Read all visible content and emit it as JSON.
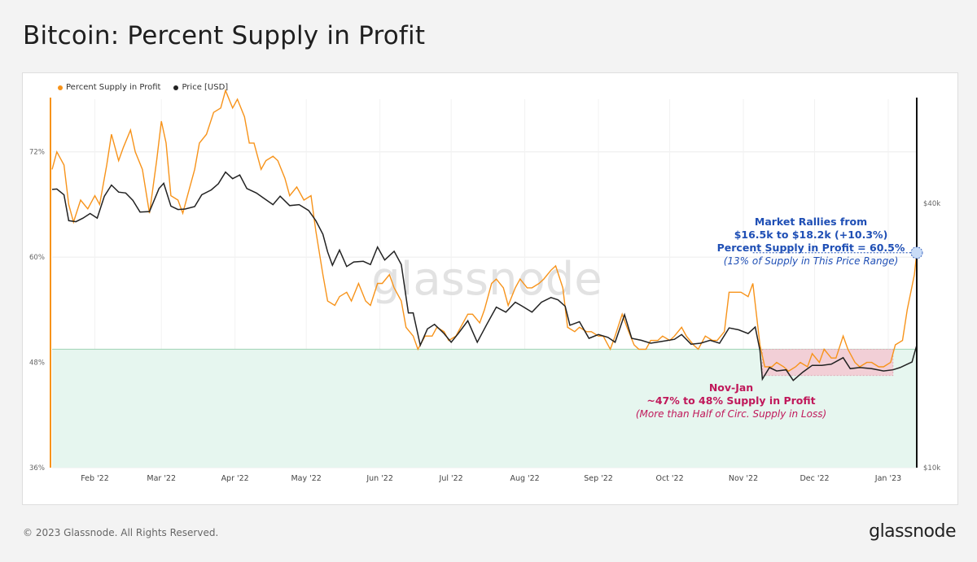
{
  "page": {
    "title": "Bitcoin: Percent Supply in Profit",
    "copyright": "© 2023 Glassnode. All Rights Reserved.",
    "brand": "glassnode",
    "watermark": "glassnode"
  },
  "colors": {
    "supply": "#f7931a",
    "price": "#222222",
    "zone_fill": "#e6f6ef",
    "zone_line": "#9fd3b5",
    "loss_box": "#f2cfd6",
    "annotation_blue": "#1f4fb5",
    "annotation_red": "#c0185a"
  },
  "chart_data": {
    "type": "line",
    "title": "Bitcoin: Percent Supply in Profit",
    "legend": [
      {
        "name": "Percent Supply in Profit",
        "color": "#f7931a"
      },
      {
        "name": "Price [USD]",
        "color": "#222222"
      }
    ],
    "legend_position": "top-left",
    "grid": true,
    "x_ticks": [
      "Feb '22",
      "Mar '22",
      "Apr '22",
      "May '22",
      "Jun '22",
      "Jul '22",
      "Aug '22",
      "Sep '22",
      "Oct '22",
      "Nov '22",
      "Dec '22",
      "Jan '23"
    ],
    "y_left": {
      "ticks": [
        "72%",
        "60%",
        "48%",
        "36%"
      ],
      "range": [
        36,
        78
      ]
    },
    "y_right": {
      "ticks": [
        "$40k",
        "$10k"
      ],
      "scale": "log",
      "range": [
        10000,
        69000
      ]
    },
    "x_range": [
      "2022-01-14",
      "2023-01-13"
    ],
    "series": [
      {
        "name": "Percent Supply in Profit",
        "axis": "left",
        "points": [
          [
            "2022-01-14",
            70.0
          ],
          [
            "2022-01-16",
            72.0
          ],
          [
            "2022-01-19",
            70.5
          ],
          [
            "2022-01-21",
            66.0
          ],
          [
            "2022-01-23",
            64.0
          ],
          [
            "2022-01-26",
            66.5
          ],
          [
            "2022-01-29",
            65.5
          ],
          [
            "2022-02-01",
            67.0
          ],
          [
            "2022-02-03",
            66.0
          ],
          [
            "2022-02-06",
            70.5
          ],
          [
            "2022-02-08",
            74.0
          ],
          [
            "2022-02-11",
            71.0
          ],
          [
            "2022-02-13",
            72.5
          ],
          [
            "2022-02-16",
            74.5
          ],
          [
            "2022-02-18",
            72.0
          ],
          [
            "2022-02-21",
            70.0
          ],
          [
            "2022-02-24",
            65.0
          ],
          [
            "2022-02-27",
            71.0
          ],
          [
            "2022-03-01",
            75.5
          ],
          [
            "2022-03-03",
            73.0
          ],
          [
            "2022-03-05",
            67.0
          ],
          [
            "2022-03-08",
            66.5
          ],
          [
            "2022-03-10",
            65.0
          ],
          [
            "2022-03-12",
            67.0
          ],
          [
            "2022-03-15",
            70.0
          ],
          [
            "2022-03-17",
            73.0
          ],
          [
            "2022-03-20",
            74.0
          ],
          [
            "2022-03-23",
            76.5
          ],
          [
            "2022-03-26",
            77.0
          ],
          [
            "2022-03-28",
            79.0
          ],
          [
            "2022-03-31",
            77.0
          ],
          [
            "2022-04-02",
            78.0
          ],
          [
            "2022-04-05",
            76.0
          ],
          [
            "2022-04-07",
            73.0
          ],
          [
            "2022-04-09",
            73.0
          ],
          [
            "2022-04-12",
            70.0
          ],
          [
            "2022-04-14",
            71.0
          ],
          [
            "2022-04-17",
            71.5
          ],
          [
            "2022-04-19",
            71.0
          ],
          [
            "2022-04-22",
            69.0
          ],
          [
            "2022-04-24",
            67.0
          ],
          [
            "2022-04-27",
            68.0
          ],
          [
            "2022-04-30",
            66.5
          ],
          [
            "2022-05-03",
            67.0
          ],
          [
            "2022-05-05",
            63.0
          ],
          [
            "2022-05-08",
            58.0
          ],
          [
            "2022-05-10",
            55.0
          ],
          [
            "2022-05-13",
            54.5
          ],
          [
            "2022-05-15",
            55.5
          ],
          [
            "2022-05-18",
            56.0
          ],
          [
            "2022-05-20",
            55.0
          ],
          [
            "2022-05-23",
            57.0
          ],
          [
            "2022-05-26",
            55.0
          ],
          [
            "2022-05-28",
            54.5
          ],
          [
            "2022-05-31",
            57.0
          ],
          [
            "2022-06-02",
            57.0
          ],
          [
            "2022-06-05",
            58.0
          ],
          [
            "2022-06-07",
            56.5
          ],
          [
            "2022-06-10",
            55.0
          ],
          [
            "2022-06-12",
            52.0
          ],
          [
            "2022-06-15",
            51.0
          ],
          [
            "2022-06-17",
            49.5
          ],
          [
            "2022-06-20",
            51.0
          ],
          [
            "2022-06-23",
            51.0
          ],
          [
            "2022-06-25",
            52.0
          ],
          [
            "2022-06-28",
            51.5
          ],
          [
            "2022-06-30",
            50.5
          ],
          [
            "2022-07-03",
            51.0
          ],
          [
            "2022-07-05",
            52.0
          ],
          [
            "2022-07-08",
            53.5
          ],
          [
            "2022-07-10",
            53.5
          ],
          [
            "2022-07-13",
            52.5
          ],
          [
            "2022-07-15",
            54.0
          ],
          [
            "2022-07-18",
            57.0
          ],
          [
            "2022-07-20",
            57.5
          ],
          [
            "2022-07-23",
            56.5
          ],
          [
            "2022-07-25",
            54.5
          ],
          [
            "2022-07-28",
            56.5
          ],
          [
            "2022-07-30",
            57.5
          ],
          [
            "2022-08-02",
            56.5
          ],
          [
            "2022-08-04",
            56.5
          ],
          [
            "2022-08-07",
            57.0
          ],
          [
            "2022-08-09",
            57.5
          ],
          [
            "2022-08-12",
            58.5
          ],
          [
            "2022-08-14",
            59.0
          ],
          [
            "2022-08-17",
            56.5
          ],
          [
            "2022-08-19",
            52.0
          ],
          [
            "2022-08-22",
            51.5
          ],
          [
            "2022-08-24",
            52.0
          ],
          [
            "2022-08-27",
            51.5
          ],
          [
            "2022-08-29",
            51.5
          ],
          [
            "2022-09-01",
            51.0
          ],
          [
            "2022-09-03",
            51.0
          ],
          [
            "2022-09-06",
            49.5
          ],
          [
            "2022-09-08",
            51.0
          ],
          [
            "2022-09-11",
            53.5
          ],
          [
            "2022-09-13",
            52.0
          ],
          [
            "2022-09-16",
            50.0
          ],
          [
            "2022-09-18",
            49.5
          ],
          [
            "2022-09-21",
            49.5
          ],
          [
            "2022-09-23",
            50.5
          ],
          [
            "2022-09-26",
            50.5
          ],
          [
            "2022-09-28",
            51.0
          ],
          [
            "2022-10-01",
            50.5
          ],
          [
            "2022-10-03",
            51.0
          ],
          [
            "2022-10-06",
            52.0
          ],
          [
            "2022-10-08",
            51.0
          ],
          [
            "2022-10-11",
            50.0
          ],
          [
            "2022-10-13",
            49.5
          ],
          [
            "2022-10-16",
            51.0
          ],
          [
            "2022-10-19",
            50.5
          ],
          [
            "2022-10-21",
            50.5
          ],
          [
            "2022-10-24",
            51.5
          ],
          [
            "2022-10-26",
            56.0
          ],
          [
            "2022-10-29",
            56.0
          ],
          [
            "2022-10-31",
            56.0
          ],
          [
            "2022-11-03",
            55.5
          ],
          [
            "2022-11-05",
            57.0
          ],
          [
            "2022-11-08",
            50.0
          ],
          [
            "2022-11-10",
            47.5
          ],
          [
            "2022-11-13",
            47.5
          ],
          [
            "2022-11-15",
            48.0
          ],
          [
            "2022-11-18",
            47.5
          ],
          [
            "2022-11-20",
            47.0
          ],
          [
            "2022-11-23",
            47.5
          ],
          [
            "2022-11-25",
            48.0
          ],
          [
            "2022-11-28",
            47.5
          ],
          [
            "2022-11-30",
            49.0
          ],
          [
            "2022-12-03",
            48.0
          ],
          [
            "2022-12-05",
            49.5
          ],
          [
            "2022-12-08",
            48.5
          ],
          [
            "2022-12-10",
            48.5
          ],
          [
            "2022-12-13",
            51.0
          ],
          [
            "2022-12-15",
            49.5
          ],
          [
            "2022-12-18",
            48.0
          ],
          [
            "2022-12-20",
            47.5
          ],
          [
            "2022-12-23",
            48.0
          ],
          [
            "2022-12-25",
            48.0
          ],
          [
            "2022-12-28",
            47.5
          ],
          [
            "2022-12-30",
            47.5
          ],
          [
            "2023-01-02",
            48.0
          ],
          [
            "2023-01-04",
            50.0
          ],
          [
            "2023-01-07",
            50.5
          ],
          [
            "2023-01-09",
            54.0
          ],
          [
            "2023-01-12",
            58.0
          ],
          [
            "2023-01-13",
            60.5
          ]
        ]
      },
      {
        "name": "Price [USD]",
        "axis": "right",
        "points": [
          [
            "2022-01-14",
            43000
          ],
          [
            "2022-01-16",
            43100
          ],
          [
            "2022-01-19",
            41800
          ],
          [
            "2022-01-21",
            36500
          ],
          [
            "2022-01-24",
            36300
          ],
          [
            "2022-01-27",
            37000
          ],
          [
            "2022-01-30",
            37900
          ],
          [
            "2022-02-02",
            37000
          ],
          [
            "2022-02-05",
            41500
          ],
          [
            "2022-02-08",
            44000
          ],
          [
            "2022-02-11",
            42400
          ],
          [
            "2022-02-14",
            42200
          ],
          [
            "2022-02-17",
            40600
          ],
          [
            "2022-02-20",
            38200
          ],
          [
            "2022-02-24",
            38300
          ],
          [
            "2022-02-28",
            43200
          ],
          [
            "2022-03-02",
            44400
          ],
          [
            "2022-03-05",
            39400
          ],
          [
            "2022-03-08",
            38700
          ],
          [
            "2022-03-11",
            38800
          ],
          [
            "2022-03-15",
            39300
          ],
          [
            "2022-03-18",
            41800
          ],
          [
            "2022-03-22",
            42900
          ],
          [
            "2022-03-25",
            44300
          ],
          [
            "2022-03-28",
            47100
          ],
          [
            "2022-03-31",
            45500
          ],
          [
            "2022-04-03",
            46400
          ],
          [
            "2022-04-06",
            43200
          ],
          [
            "2022-04-10",
            42200
          ],
          [
            "2022-04-13",
            41100
          ],
          [
            "2022-04-17",
            39700
          ],
          [
            "2022-04-20",
            41500
          ],
          [
            "2022-04-24",
            39500
          ],
          [
            "2022-04-28",
            39700
          ],
          [
            "2022-05-02",
            38500
          ],
          [
            "2022-05-05",
            36500
          ],
          [
            "2022-05-08",
            34000
          ],
          [
            "2022-05-10",
            31000
          ],
          [
            "2022-05-12",
            28900
          ],
          [
            "2022-05-15",
            31300
          ],
          [
            "2022-05-18",
            28700
          ],
          [
            "2022-05-21",
            29400
          ],
          [
            "2022-05-25",
            29500
          ],
          [
            "2022-05-28",
            29000
          ],
          [
            "2022-05-31",
            31800
          ],
          [
            "2022-06-03",
            29700
          ],
          [
            "2022-06-07",
            31100
          ],
          [
            "2022-06-10",
            29000
          ],
          [
            "2022-06-13",
            22500
          ],
          [
            "2022-06-15",
            22500
          ],
          [
            "2022-06-18",
            19000
          ],
          [
            "2022-06-21",
            20700
          ],
          [
            "2022-06-24",
            21200
          ],
          [
            "2022-06-28",
            20200
          ],
          [
            "2022-07-01",
            19300
          ],
          [
            "2022-07-04",
            20200
          ],
          [
            "2022-07-08",
            21600
          ],
          [
            "2022-07-12",
            19300
          ],
          [
            "2022-07-16",
            21200
          ],
          [
            "2022-07-20",
            23200
          ],
          [
            "2022-07-24",
            22600
          ],
          [
            "2022-07-28",
            23800
          ],
          [
            "2022-07-31",
            23300
          ],
          [
            "2022-08-04",
            22600
          ],
          [
            "2022-08-08",
            23800
          ],
          [
            "2022-08-12",
            24400
          ],
          [
            "2022-08-15",
            24100
          ],
          [
            "2022-08-18",
            23300
          ],
          [
            "2022-08-20",
            21100
          ],
          [
            "2022-08-24",
            21500
          ],
          [
            "2022-08-28",
            19700
          ],
          [
            "2022-09-01",
            20100
          ],
          [
            "2022-09-05",
            19800
          ],
          [
            "2022-09-08",
            19300
          ],
          [
            "2022-09-12",
            22300
          ],
          [
            "2022-09-15",
            19700
          ],
          [
            "2022-09-19",
            19500
          ],
          [
            "2022-09-23",
            19200
          ],
          [
            "2022-09-28",
            19400
          ],
          [
            "2022-10-03",
            19600
          ],
          [
            "2022-10-06",
            20100
          ],
          [
            "2022-10-10",
            19100
          ],
          [
            "2022-10-14",
            19200
          ],
          [
            "2022-10-18",
            19500
          ],
          [
            "2022-10-22",
            19200
          ],
          [
            "2022-10-26",
            20800
          ],
          [
            "2022-10-30",
            20600
          ],
          [
            "2022-11-03",
            20200
          ],
          [
            "2022-11-06",
            20900
          ],
          [
            "2022-11-08",
            18500
          ],
          [
            "2022-11-09",
            15900
          ],
          [
            "2022-11-12",
            16900
          ],
          [
            "2022-11-15",
            16600
          ],
          [
            "2022-11-19",
            16700
          ],
          [
            "2022-11-22",
            15800
          ],
          [
            "2022-11-26",
            16500
          ],
          [
            "2022-11-30",
            17100
          ],
          [
            "2022-12-04",
            17100
          ],
          [
            "2022-12-08",
            17200
          ],
          [
            "2022-12-13",
            17800
          ],
          [
            "2022-12-16",
            16800
          ],
          [
            "2022-12-20",
            16900
          ],
          [
            "2022-12-25",
            16800
          ],
          [
            "2022-12-30",
            16600
          ],
          [
            "2023-01-03",
            16700
          ],
          [
            "2023-01-06",
            16900
          ],
          [
            "2023-01-09",
            17200
          ],
          [
            "2023-01-11",
            17400
          ],
          [
            "2023-01-12",
            18200
          ],
          [
            "2023-01-13",
            19000
          ]
        ]
      }
    ],
    "reference_line": 49.5,
    "annotations": [
      {
        "id": "rally",
        "lines": [
          "Market Rallies from",
          "$16.5k to $18.2k (+10.3%)",
          "Percent Supply in Profit = 60.5%"
        ],
        "note": "(13% of Supply in This Price Range)",
        "color": "#1f4fb5"
      },
      {
        "id": "novjan",
        "lines": [
          "Nov-Jan",
          "~47% to 48% Supply in Profit"
        ],
        "note": "(More than Half of Circ. Supply in Loss)",
        "color": "#c0185a"
      }
    ]
  }
}
